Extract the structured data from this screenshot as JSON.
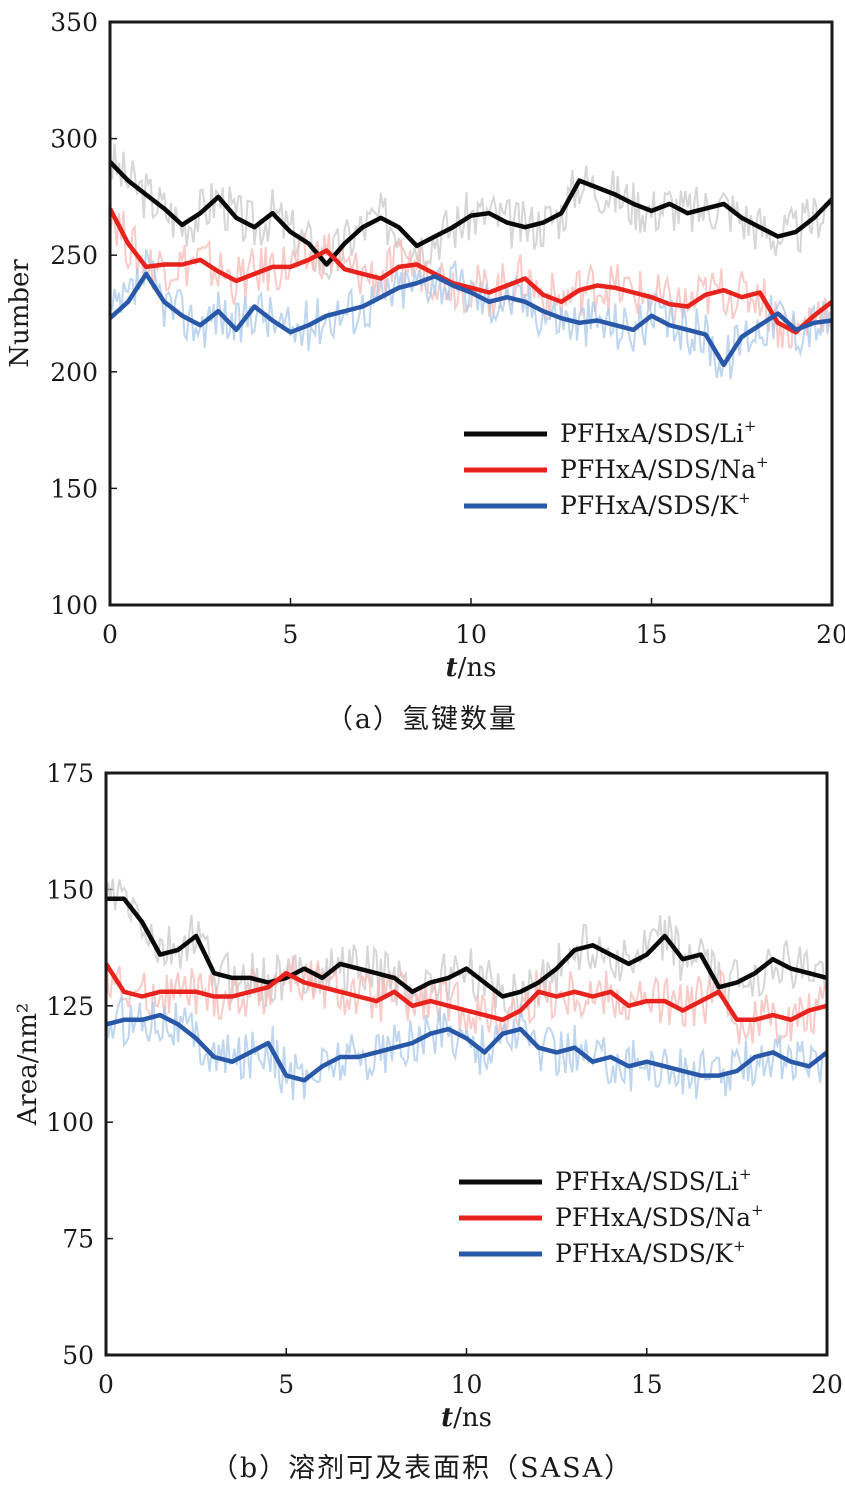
{
  "chart_data": [
    {
      "type": "line",
      "caption": "（a）氢键数量",
      "xlabel_italic": "t",
      "xlabel_unit": "/ns",
      "ylabel": "Number",
      "xlim": [
        0,
        20
      ],
      "ylim": [
        100,
        350
      ],
      "xticks": [
        0,
        5,
        10,
        15,
        20
      ],
      "yticks": [
        100,
        150,
        200,
        250,
        300,
        350
      ],
      "legend_position": "lower-right",
      "series": [
        {
          "name": "PFHxA/SDS/Li",
          "sup": "+",
          "color": "#0a0a0a",
          "light": "#c8c8c8",
          "x": [
            0,
            0.5,
            1,
            1.5,
            2,
            2.5,
            3,
            3.5,
            4,
            4.5,
            5,
            5.5,
            6,
            6.5,
            7,
            7.5,
            8,
            8.5,
            9,
            9.5,
            10,
            10.5,
            11,
            11.5,
            12,
            12.5,
            13,
            13.5,
            14,
            14.5,
            15,
            15.5,
            16,
            16.5,
            17,
            17.5,
            18,
            18.5,
            19,
            19.5,
            20
          ],
          "y": [
            290,
            282,
            276,
            270,
            263,
            268,
            275,
            266,
            262,
            268,
            260,
            255,
            246,
            255,
            262,
            266,
            262,
            254,
            258,
            262,
            267,
            268,
            264,
            262,
            264,
            268,
            282,
            279,
            276,
            272,
            269,
            272,
            268,
            270,
            272,
            266,
            262,
            258,
            260,
            266,
            274
          ]
        },
        {
          "name": "PFHxA/SDS/Na",
          "sup": "+",
          "color": "#e8221c",
          "light": "#f6b9b6",
          "x": [
            0,
            0.5,
            1,
            1.5,
            2,
            2.5,
            3,
            3.5,
            4,
            4.5,
            5,
            5.5,
            6,
            6.5,
            7,
            7.5,
            8,
            8.5,
            9,
            9.5,
            10,
            10.5,
            11,
            11.5,
            12,
            12.5,
            13,
            13.5,
            14,
            14.5,
            15,
            15.5,
            16,
            16.5,
            17,
            17.5,
            18,
            18.5,
            19,
            19.5,
            20
          ],
          "y": [
            270,
            255,
            245,
            246,
            246,
            248,
            243,
            239,
            242,
            245,
            245,
            248,
            252,
            244,
            242,
            240,
            245,
            246,
            242,
            238,
            236,
            234,
            237,
            240,
            233,
            230,
            235,
            237,
            236,
            234,
            232,
            229,
            228,
            233,
            235,
            232,
            234,
            221,
            217,
            224,
            230
          ]
        },
        {
          "name": "PFHxA/SDS/K",
          "sup": "+",
          "color": "#2a58a8",
          "light": "#a9c8ea",
          "x": [
            0,
            0.5,
            1,
            1.5,
            2,
            2.5,
            3,
            3.5,
            4,
            4.5,
            5,
            5.5,
            6,
            6.5,
            7,
            7.5,
            8,
            8.5,
            9,
            9.5,
            10,
            10.5,
            11,
            11.5,
            12,
            12.5,
            13,
            13.5,
            14,
            14.5,
            15,
            15.5,
            16,
            16.5,
            17,
            17.5,
            18,
            18.5,
            19,
            19.5,
            20
          ],
          "y": [
            223,
            230,
            242,
            230,
            224,
            220,
            226,
            218,
            228,
            222,
            217,
            220,
            224,
            226,
            228,
            232,
            236,
            238,
            241,
            237,
            234,
            230,
            232,
            230,
            226,
            223,
            221,
            222,
            220,
            218,
            224,
            220,
            218,
            216,
            203,
            215,
            220,
            225,
            218,
            221,
            222
          ]
        }
      ]
    },
    {
      "type": "line",
      "caption": "（b）溶剂可及表面积（SASA）",
      "xlabel_italic": "t",
      "xlabel_unit": "/ns",
      "ylabel": "Area/nm²",
      "xlim": [
        0,
        20
      ],
      "ylim": [
        50,
        175
      ],
      "xticks": [
        0,
        5,
        10,
        15,
        20
      ],
      "yticks": [
        50,
        75,
        100,
        125,
        150,
        175
      ],
      "legend_position": "lower-right",
      "series": [
        {
          "name": "PFHxA/SDS/Li",
          "sup": "+",
          "color": "#0a0a0a",
          "light": "#c8c8c8",
          "x": [
            0,
            0.5,
            1,
            1.5,
            2,
            2.5,
            3,
            3.5,
            4,
            4.5,
            5,
            5.5,
            6,
            6.5,
            7,
            7.5,
            8,
            8.5,
            9,
            9.5,
            10,
            10.5,
            11,
            11.5,
            12,
            12.5,
            13,
            13.5,
            14,
            14.5,
            15,
            15.5,
            16,
            16.5,
            17,
            17.5,
            18,
            18.5,
            19,
            19.5,
            20
          ],
          "y": [
            148,
            148,
            143,
            136,
            137,
            140,
            132,
            131,
            131,
            130,
            131,
            133,
            131,
            134,
            133,
            132,
            131,
            128,
            130,
            131,
            133,
            130,
            127,
            128,
            130,
            133,
            137,
            138,
            136,
            134,
            136,
            140,
            135,
            136,
            129,
            130,
            132,
            135,
            133,
            132,
            131
          ]
        },
        {
          "name": "PFHxA/SDS/Na",
          "sup": "+",
          "color": "#e8221c",
          "light": "#f6b9b6",
          "x": [
            0,
            0.5,
            1,
            1.5,
            2,
            2.5,
            3,
            3.5,
            4,
            4.5,
            5,
            5.5,
            6,
            6.5,
            7,
            7.5,
            8,
            8.5,
            9,
            9.5,
            10,
            10.5,
            11,
            11.5,
            12,
            12.5,
            13,
            13.5,
            14,
            14.5,
            15,
            15.5,
            16,
            16.5,
            17,
            17.5,
            18,
            18.5,
            19,
            19.5,
            20
          ],
          "y": [
            134,
            128,
            127,
            128,
            128,
            128,
            127,
            127,
            128,
            129,
            132,
            130,
            129,
            128,
            127,
            126,
            128,
            125,
            126,
            125,
            124,
            123,
            122,
            124,
            128,
            127,
            128,
            127,
            128,
            125,
            126,
            126,
            124,
            126,
            128,
            122,
            122,
            123,
            122,
            124,
            125
          ]
        },
        {
          "name": "PFHxA/SDS/K",
          "sup": "+",
          "color": "#2a58a8",
          "light": "#a9c8ea",
          "x": [
            0,
            0.5,
            1,
            1.5,
            2,
            2.5,
            3,
            3.5,
            4,
            4.5,
            5,
            5.5,
            6,
            6.5,
            7,
            7.5,
            8,
            8.5,
            9,
            9.5,
            10,
            10.5,
            11,
            11.5,
            12,
            12.5,
            13,
            13.5,
            14,
            14.5,
            15,
            15.5,
            16,
            16.5,
            17,
            17.5,
            18,
            18.5,
            19,
            19.5,
            20
          ],
          "y": [
            121,
            122,
            122,
            123,
            121,
            118,
            114,
            113,
            115,
            117,
            110,
            109,
            112,
            114,
            114,
            115,
            116,
            117,
            119,
            120,
            118,
            115,
            119,
            120,
            116,
            115,
            116,
            113,
            114,
            112,
            113,
            112,
            111,
            110,
            110,
            111,
            114,
            115,
            113,
            112,
            115
          ]
        }
      ]
    }
  ]
}
